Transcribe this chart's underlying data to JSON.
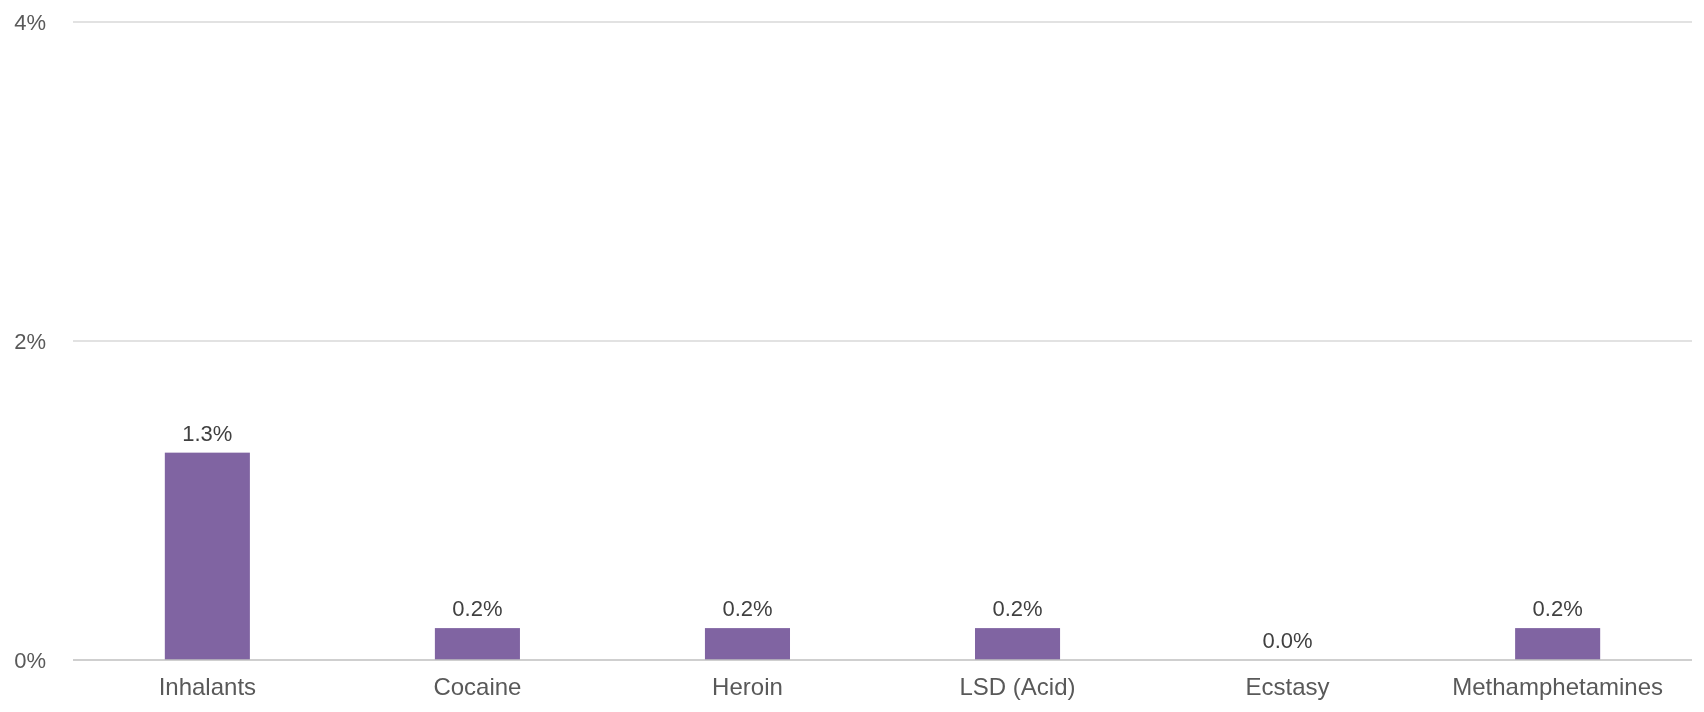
{
  "chart_data": {
    "type": "bar",
    "categories": [
      "Inhalants",
      "Cocaine",
      "Heroin",
      "LSD (Acid)",
      "Ecstasy",
      "Methamphetamines"
    ],
    "values": [
      1.3,
      0.2,
      0.2,
      0.2,
      0.0,
      0.2
    ],
    "value_labels": [
      "1.3%",
      "0.2%",
      "0.2%",
      "0.2%",
      "0.0%",
      "0.2%"
    ],
    "color": "#8064a2",
    "ylim": [
      0,
      4
    ],
    "yticks": [
      {
        "value": 0,
        "label": "0%"
      },
      {
        "value": 2,
        "label": "2%"
      },
      {
        "value": 4,
        "label": "4%"
      }
    ],
    "grid": "y"
  }
}
